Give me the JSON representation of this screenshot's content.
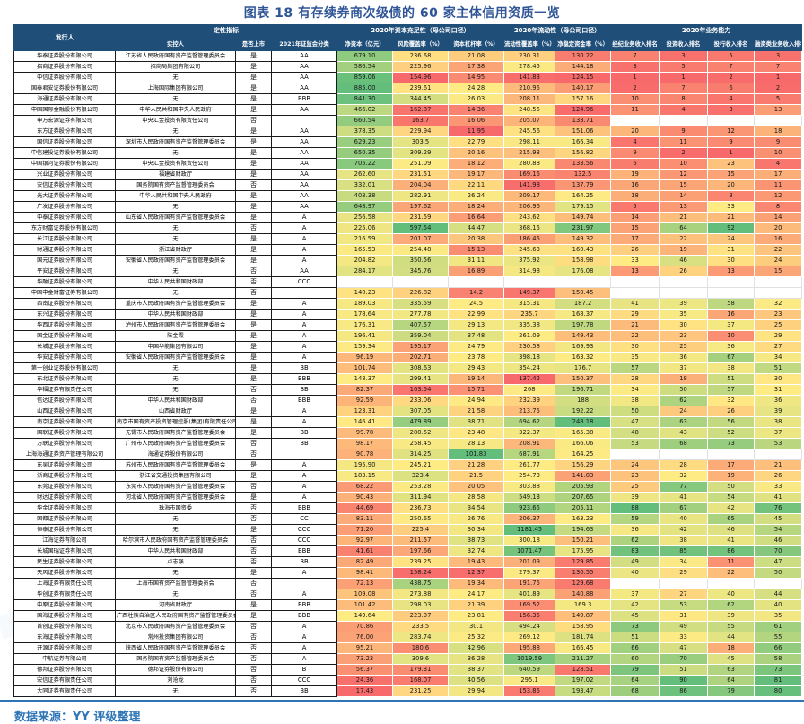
{
  "title": "图表 18 有存续券商次级债的 60 家主体信用资质一览",
  "source": "数据来源：YY 评级整理",
  "colors": {
    "header_bg": "#1F4E79",
    "header_text": "#FFFFFF",
    "title": "#2F5597",
    "source": "#2E75B6",
    "divider": "#2E75B6",
    "heat_min": "#F8696B",
    "heat_mid": "#FFEB84",
    "heat_max": "#63BE7B"
  },
  "header": {
    "issuer": "发行人",
    "groups": [
      {
        "label": "定性指标",
        "span": 3
      },
      {
        "label": "2020年资本充足性（母公司口径）",
        "span": 3
      },
      {
        "label": "2020年流动性（母公司口径）",
        "span": 2
      },
      {
        "label": "2020年业务能力",
        "span": 4
      }
    ],
    "subs": [
      "实控人",
      "是否上市",
      "2021年证监会分类",
      "净资本（亿元）",
      "风险覆盖率（%）",
      "资本杠杆率（%）",
      "流动性覆盖率（%）",
      "净稳定资金率（%）",
      "经纪业务收入排名",
      "投资收入排名",
      "投行收入排名",
      "融资类业务收入排名"
    ]
  },
  "chart_data": {
    "type": "table",
    "columns": [
      "发行人",
      "实控人",
      "是否上市",
      "2021年证监会分类",
      "净资本（亿元）",
      "风险覆盖率（%）",
      "资本杠杆率（%）",
      "流动性覆盖率（%）",
      "净稳定资金率（%）",
      "经纪业务收入排名",
      "投资收入排名",
      "投行收入排名",
      "融资类业务收入排名"
    ],
    "heat_columns": [
      4,
      5,
      6,
      7,
      8,
      9,
      10,
      11,
      12
    ],
    "heat_scale_note": "per-column 3-color scale: low=red, median=yellow, high=green",
    "rows": [
      [
        "华泰证券股份有限公司",
        "江苏省人民政府国有资产监督管理委员会",
        "是",
        "AA",
        "679.10",
        "236.68",
        "21.08",
        "230.31",
        "130.22",
        "7",
        "3",
        "5",
        "3"
      ],
      [
        "招商证券股份有限公司",
        "招商局集团有限公司",
        "是",
        "AA",
        "586.54",
        "225.96",
        "17.38",
        "278.45",
        "144.18",
        "3",
        "5",
        "7",
        "7"
      ],
      [
        "中信证券股份有限公司",
        "无",
        "是",
        "AA",
        "859.06",
        "154.96",
        "14.95",
        "141.83",
        "124.15",
        "1",
        "1",
        "2",
        "1"
      ],
      [
        "国泰君安证券股份有限公司",
        "上海国际集团有限公司",
        "是",
        "AA",
        "885.00",
        "239.61",
        "24.28",
        "210.95",
        "140.17",
        "2",
        "7",
        "6",
        "2"
      ],
      [
        "海通证券股份有限公司",
        "无",
        "是",
        "BBB",
        "841.30",
        "344.45",
        "26.03",
        "208.11",
        "157.16",
        "10",
        "8",
        "4",
        "5"
      ],
      [
        "中国国际金融股份有限公司",
        "中华人民共和国中央人民政府",
        "是",
        "AA",
        "466.02",
        "162.87",
        "14.36",
        "248.55",
        "124.96",
        "11",
        "4",
        "3",
        "13"
      ],
      [
        "申万宏源证券有限公司",
        "中央汇金投资有限责任公司",
        "否",
        "",
        "660.54",
        "163.7",
        "16.06",
        "205.07",
        "133.71",
        "",
        "",
        "",
        ""
      ],
      [
        "东方证券股份有限公司",
        "无",
        "是",
        "AA",
        "378.35",
        "229.94",
        "11.95",
        "245.56",
        "151.06",
        "20",
        "9",
        "12",
        "18"
      ],
      [
        "国信证券股份有限公司",
        "深圳市人民政府国有资产监督管理委员会",
        "是",
        "AA",
        "629.23",
        "303.5",
        "22.79",
        "298.11",
        "166.34",
        "4",
        "11",
        "9",
        "9"
      ],
      [
        "中信建投证券股份有限公司",
        "无",
        "是",
        "AA",
        "650.35",
        "309.29",
        "20.16",
        "215.93",
        "156.82",
        "9",
        "2",
        "1",
        "10"
      ],
      [
        "中国银河证券股份有限公司",
        "中央汇金投资有限责任公司",
        "是",
        "AA",
        "705.22",
        "251.09",
        "18.12",
        "280.88",
        "133.56",
        "6",
        "10",
        "23",
        "4"
      ],
      [
        "兴业证券股份有限公司",
        "福建省财政厅",
        "是",
        "AA",
        "262.60",
        "231.51",
        "19.17",
        "169.15",
        "132.5",
        "19",
        "12",
        "15",
        "17"
      ],
      [
        "安信证券股份有限公司",
        "国务院国有资产监督管理委员会",
        "否",
        "AA",
        "332.01",
        "204.04",
        "22.11",
        "141.98",
        "137.79",
        "16",
        "15",
        "20",
        "11"
      ],
      [
        "光大证券股份有限公司",
        "中华人民共和国中央人民政府",
        "是",
        "AA",
        "403.38",
        "282.91",
        "26.24",
        "209.17",
        "164.25",
        "18",
        "14",
        "8",
        "12"
      ],
      [
        "广发证券股份有限公司",
        "无",
        "是",
        "AA",
        "648.97",
        "197.62",
        "18.24",
        "206.96",
        "179.15",
        "5",
        "13",
        "33",
        "8"
      ],
      [
        "中泰证券股份有限公司",
        "山东省人民政府国有资产监督管理委员会",
        "是",
        "A",
        "256.58",
        "231.59",
        "16.64",
        "243.62",
        "149.74",
        "14",
        "21",
        "21",
        "14"
      ],
      [
        "东方财富证券股份有限公司",
        "无",
        "否",
        "A",
        "225.06",
        "597.54",
        "44.47",
        "368.15",
        "231.97",
        "15",
        "64",
        "92",
        "20"
      ],
      [
        "长江证券股份有限公司",
        "无",
        "是",
        "A",
        "216.59",
        "201.07",
        "20.38",
        "186.45",
        "149.32",
        "17",
        "22",
        "24",
        "16"
      ],
      [
        "财通证券股份有限公司",
        "浙江省财政厅",
        "是",
        "A",
        "165.53",
        "254.48",
        "15.13",
        "245.63",
        "160.43",
        "26",
        "19",
        "31",
        "22"
      ],
      [
        "国元证券股份有限公司",
        "安徽省人民政府国有资产监督管理委员会",
        "是",
        "A",
        "204.82",
        "350.56",
        "31.11",
        "375.92",
        "158.98",
        "33",
        "46",
        "30",
        "24"
      ],
      [
        "平安证券股份有限公司",
        "无",
        "否",
        "AA",
        "284.17",
        "345.76",
        "16.89",
        "314.98",
        "176.08",
        "13",
        "26",
        "13",
        "15"
      ],
      [
        "华融证券股份有限公司",
        "中华人民共和国财政部",
        "否",
        "CCC",
        "",
        "",
        "",
        "",
        "",
        "",
        "",
        "",
        ""
      ],
      [
        "中国中金财富证券有限公司",
        "无",
        "否",
        "",
        "140.23",
        "226.82",
        "14.2",
        "149.37",
        "150.45",
        "",
        "",
        "",
        ""
      ],
      [
        "西南证券股份有限公司",
        "重庆市人民政府国有资产监督管理委员会",
        "是",
        "A",
        "189.03",
        "335.59",
        "24.5",
        "315.31",
        "187.2",
        "41",
        "39",
        "58",
        "32"
      ],
      [
        "东兴证券股份有限公司",
        "中华人民共和国财政部",
        "是",
        "A",
        "178.64",
        "277.78",
        "22.99",
        "235.7",
        "168.37",
        "29",
        "35",
        "16",
        "23"
      ],
      [
        "华西证券股份有限公司",
        "泸州市人民政府国有资产监督管理委员会",
        "是",
        "A",
        "176.31",
        "407.57",
        "29.13",
        "335.38",
        "197.78",
        "21",
        "30",
        "37",
        "25"
      ],
      [
        "国金证券股份有限公司",
        "陈金霞",
        "是",
        "A",
        "196.41",
        "359.04",
        "37.48",
        "261.09",
        "149.43",
        "22",
        "23",
        "10",
        "29"
      ],
      [
        "长城证券股份有限公司",
        "中国华能集团有限公司",
        "是",
        "A",
        "159.34",
        "195.17",
        "24.79",
        "230.58",
        "169.93",
        "30",
        "25",
        "36",
        "27"
      ],
      [
        "华安证券股份有限公司",
        "安徽省人民政府国有资产监督管理委员会",
        "是",
        "A",
        "96.19",
        "202.71",
        "23.78",
        "398.18",
        "163.32",
        "35",
        "36",
        "67",
        "34"
      ],
      [
        "第一创业证券股份有限公司",
        "无",
        "是",
        "BB",
        "101.74",
        "308.63",
        "29.43",
        "354.24",
        "176.7",
        "57",
        "37",
        "38",
        "51"
      ],
      [
        "东北证券股份有限公司",
        "无",
        "是",
        "BBB",
        "148.37",
        "299.41",
        "19.14",
        "137.42",
        "150.37",
        "28",
        "18",
        "51",
        "30"
      ],
      [
        "华福证券有限责任公司",
        "无",
        "否",
        "BB",
        "82.37",
        "163.54",
        "15.71",
        "268",
        "196.71",
        "34",
        "50",
        "57",
        "31"
      ],
      [
        "信达证券股份有限公司",
        "中华人民共和国财政部",
        "否",
        "BBB",
        "92.59",
        "233.06",
        "24.94",
        "232.39",
        "188",
        "38",
        "62",
        "32",
        "36"
      ],
      [
        "山西证券股份有限公司",
        "山西省财政厅",
        "是",
        "A",
        "123.31",
        "307.05",
        "21.58",
        "213.75",
        "192.22",
        "50",
        "24",
        "26",
        "39"
      ],
      [
        "南京证券股份有限公司",
        "南京市国有资产投资管理控股(集团)有限责任公司",
        "是",
        "A",
        "146.41",
        "479.89",
        "38.71",
        "694.62",
        "248.18",
        "47",
        "63",
        "56",
        "38"
      ],
      [
        "国联证券股份有限公司",
        "无锡市人民政府国有资产监督管理委员会",
        "是",
        "BB",
        "99.78",
        "280.52",
        "23.48",
        "322.37",
        "165.38",
        "48",
        "43",
        "52",
        "37"
      ],
      [
        "万联证券股份有限公司",
        "广州市人民政府国有资产监督管理委员会",
        "否",
        "BB",
        "98.17",
        "258.45",
        "28.13",
        "208.91",
        "166.06",
        "53",
        "68",
        "73",
        "53"
      ],
      [
        "上海海通证券资产管理有限公司",
        "海通证券股份有限公司",
        "否",
        "",
        "90.78",
        "314.25",
        "101.83",
        "687.91",
        "164.25",
        "",
        "",
        "",
        ""
      ],
      [
        "东吴证券股份有限公司",
        "苏州市人民政府国有资产监督管理委员会",
        "是",
        "A",
        "195.90",
        "245.21",
        "21.28",
        "261.77",
        "156.29",
        "24",
        "28",
        "17",
        "21"
      ],
      [
        "浙商证券股份有限公司",
        "浙江省交通投资集团有限公司",
        "是",
        "A",
        "183.15",
        "323.4",
        "21.5",
        "254.73",
        "141.03",
        "23",
        "32",
        "19",
        "26"
      ],
      [
        "东莞证券股份有限公司",
        "东莞市人民政府国有资产监督管理委员会",
        "否",
        "A",
        "68.22",
        "253.28",
        "20.05",
        "303.88",
        "205.93",
        "25",
        "77",
        "50",
        "33"
      ],
      [
        "财达证券股份有限公司",
        "河北省人民政府国有资产监督管理委员会",
        "是",
        "A",
        "90.43",
        "311.94",
        "28.58",
        "549.13",
        "207.65",
        "39",
        "41",
        "54",
        "41"
      ],
      [
        "华金证券股份有限公司",
        "珠海市国资委",
        "否",
        "BBB",
        "44.69",
        "236.73",
        "34.54",
        "923.65",
        "205.11",
        "88",
        "67",
        "42",
        "76"
      ],
      [
        "国都证券股份有限公司",
        "无",
        "否",
        "CC",
        "83.11",
        "250.65",
        "26.76",
        "206.37",
        "163.23",
        "59",
        "40",
        "65",
        "45"
      ],
      [
        "恒泰证券股份有限公司",
        "无",
        "是",
        "CCC",
        "71.20",
        "225.4",
        "30.34",
        "1181.45",
        "194.63",
        "36",
        "42",
        "46",
        "54"
      ],
      [
        "江海证券有限公司",
        "哈尔滨市人民政府国有资产监督管理委员会",
        "否",
        "CCC",
        "92.97",
        "211.57",
        "38.73",
        "300.18",
        "150.21",
        "62",
        "38",
        "41",
        "46"
      ],
      [
        "长城国瑞证券有限公司",
        "中华人民共和国财政部",
        "否",
        "BBB",
        "41.61",
        "197.66",
        "32.74",
        "1071.47",
        "175.95",
        "83",
        "85",
        "86",
        "70"
      ],
      [
        "民生证券股份有限公司",
        "卢志强",
        "否",
        "BB",
        "82.49",
        "239.25",
        "19.43",
        "201.09",
        "129.85",
        "49",
        "34",
        "11",
        "47"
      ],
      [
        "天风证券股份有限公司",
        "无",
        "是",
        "A",
        "98.41",
        "158.24",
        "12.37",
        "279.37",
        "130.55",
        "40",
        "29",
        "22",
        "50"
      ],
      [
        "上海证券有限责任公司",
        "上海市国有资产监督管理委员会",
        "否",
        "",
        "72.13",
        "438.75",
        "19.34",
        "191.75",
        "129.68",
        "",
        "",
        "",
        ""
      ],
      [
        "华创证券有限责任公司",
        "无",
        "否",
        "A",
        "109.08",
        "273.88",
        "24.17",
        "401.89",
        "140.88",
        "37",
        "27",
        "40",
        "44"
      ],
      [
        "中原证券股份有限公司",
        "河南省财政厅",
        "是",
        "BBB",
        "101.42",
        "298.03",
        "21.39",
        "169.52",
        "169.3",
        "42",
        "53",
        "62",
        "40"
      ],
      [
        "国海证券股份有限公司",
        "广西壮族自治区人民政府国有资产监督管理委员会",
        "是",
        "BBB",
        "149.64",
        "223.97",
        "23.81",
        "156.35",
        "149.87",
        "45",
        "31",
        "39",
        "35"
      ],
      [
        "首创证券股份有限公司",
        "北京市人民政府国有资产监督管理委员会",
        "否",
        "A",
        "70.86",
        "233.5",
        "30.1",
        "494.24",
        "158.95",
        "73",
        "49",
        "55",
        "61"
      ],
      [
        "东海证券股份有限公司",
        "常州投资集团有限公司",
        "否",
        "A",
        "76.00",
        "283.74",
        "25.32",
        "269.12",
        "181.74",
        "51",
        "33",
        "44",
        "55"
      ],
      [
        "开源证券股份有限公司",
        "陕西省人民政府国有资产监督管理委员会",
        "否",
        "A",
        "95.21",
        "180.6",
        "42.96",
        "195.88",
        "166.45",
        "66",
        "47",
        "18",
        "66"
      ],
      [
        "中航证券有限公司",
        "国务院国有资产监督管理委员会",
        "否",
        "A",
        "73.23",
        "309.6",
        "36.28",
        "1019.59",
        "211.27",
        "60",
        "70",
        "45",
        "58"
      ],
      [
        "德邦证券股份有限公司",
        "德邦证券股份有限公司",
        "否",
        "B",
        "56.37",
        "179.31",
        "38.37",
        "640.59",
        "128.51",
        "79",
        "51",
        "63",
        "73"
      ],
      [
        "宏信证券有限责任公司",
        "刘沧龙",
        "否",
        "CCC",
        "24.36",
        "168.07",
        "40.56",
        "295.1",
        "197.02",
        "64",
        "90",
        "64",
        "81"
      ],
      [
        "大同证券有限责任公司",
        "无",
        "否",
        "BB",
        "17.43",
        "231.25",
        "29.94",
        "153.85",
        "193.47",
        "68",
        "86",
        "79",
        "80"
      ]
    ]
  }
}
